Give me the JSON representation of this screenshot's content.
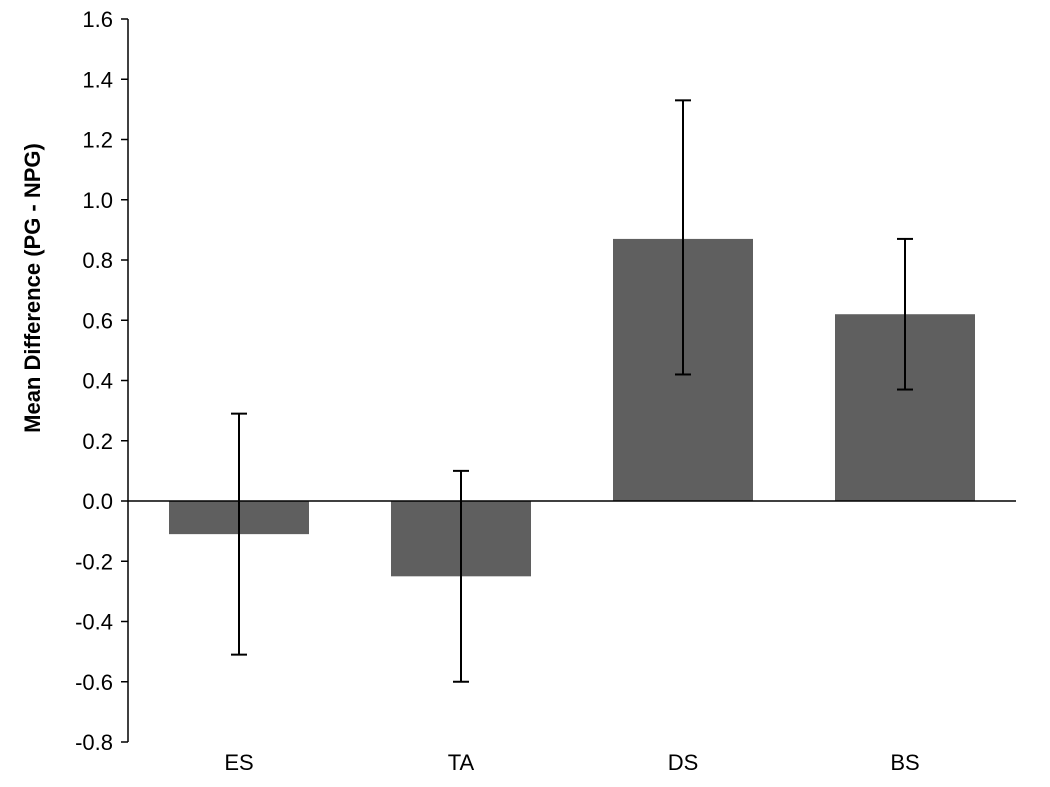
{
  "chart_data": {
    "type": "bar",
    "title": "",
    "xlabel": "",
    "ylabel": "Mean Difference (PG - NPG)",
    "ylim": [
      -0.8,
      1.6
    ],
    "yticks": [
      "1.6",
      "1.4",
      "1.2",
      "1.0",
      "0.8",
      "0.6",
      "0.4",
      "0.2",
      "0.0",
      "-0.2",
      "-0.4",
      "-0.6",
      "-0.8"
    ],
    "categories": [
      "ES",
      "TA",
      "DS",
      "BS"
    ],
    "values": [
      -0.11,
      -0.25,
      0.87,
      0.62
    ],
    "error_low": [
      -0.51,
      -0.6,
      0.42,
      0.37
    ],
    "error_high": [
      0.29,
      0.1,
      1.33,
      0.87
    ],
    "grid": false,
    "bar_color": "#5f5f5f",
    "axis_color": "#000000"
  }
}
